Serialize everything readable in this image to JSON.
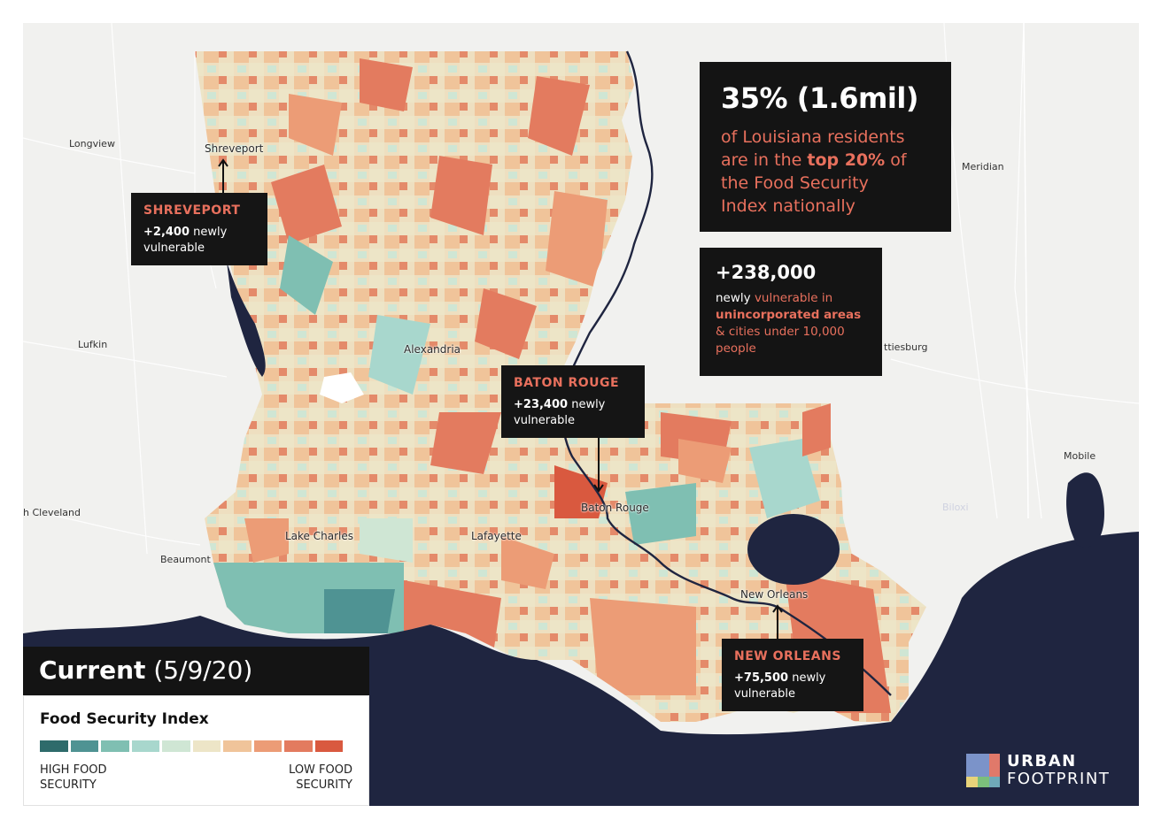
{
  "map": {
    "places": [
      {
        "name": "Longview"
      },
      {
        "name": "Shreveport"
      },
      {
        "name": "Meridian"
      },
      {
        "name": "Lufkin"
      },
      {
        "name": "Alexandria"
      },
      {
        "name": "ttiesburg"
      },
      {
        "name": "Mobile"
      },
      {
        "name": "h Cleveland"
      },
      {
        "name": "Baton Rouge"
      },
      {
        "name": "Biloxi"
      },
      {
        "name": "Lake Charles"
      },
      {
        "name": "Lafayette"
      },
      {
        "name": "Beaumont"
      },
      {
        "name": "New Orleans"
      }
    ]
  },
  "callouts": {
    "shreveport": {
      "title": "SHREVEPORT",
      "number": "+2,400",
      "text_a": "newly",
      "text_b": "vulnerable"
    },
    "baton_rouge": {
      "title": "BATON ROUGE",
      "number": "+23,400",
      "text_a": "newly",
      "text_b": "vulnerable"
    },
    "new_orleans": {
      "title": "NEW ORLEANS",
      "number": "+75,500",
      "text_a": "newly",
      "text_b": "vulnerable"
    }
  },
  "headline": {
    "number": "35% (1.6mil)",
    "line_a": "of Louisiana residents",
    "line_b_pre": "are in the ",
    "line_b_bold": "top 20%",
    "line_b_post": " of",
    "line_c": "the Food Security",
    "line_d": "Index nationally"
  },
  "rural": {
    "number": "+238,000",
    "text_a": "newly ",
    "text_a_hl": "vulnerable in",
    "text_b": "unincorporated areas",
    "text_c": "& cities under 10,000",
    "text_d": "people"
  },
  "banner": {
    "bold": "Current",
    "date": " (5/9/20)"
  },
  "legend": {
    "title": "Food Security Index",
    "high_a": "HIGH FOOD",
    "high_b": "SECURITY",
    "low_a": "LOW FOOD",
    "low_b": "SECURITY",
    "colors": [
      "#2e6b6b",
      "#4f9393",
      "#7fbfb2",
      "#a8d7cd",
      "#cfe6d4",
      "#ede5c7",
      "#f0c49a",
      "#ec9c76",
      "#e37b5f",
      "#d9593f"
    ]
  },
  "logo": {
    "line1": "URBAN",
    "line2": "FOOTPRINT"
  },
  "colors": {
    "accent": "#e8705d",
    "water": "#1f2540",
    "land": "#f1f1ef"
  }
}
